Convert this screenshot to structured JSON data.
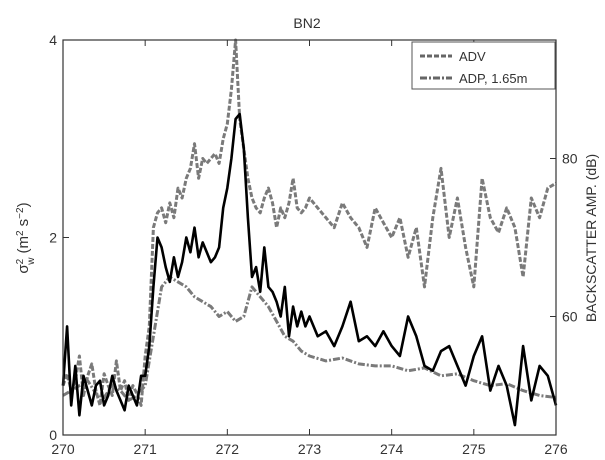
{
  "chart_data": {
    "type": "line",
    "title": "BN2",
    "xlabel": "",
    "ylabel_left_main": "σ",
    "ylabel_left_sub": "w",
    "ylabel_left_sup": "2",
    "ylabel_left_units_a": "(m",
    "ylabel_left_units_sup1": "2",
    "ylabel_left_units_b": " s",
    "ylabel_left_units_sup2": "−2",
    "ylabel_left_units_c": ")",
    "ylabel_right": "BACKSCATTER AMP. (dB)",
    "xlim": [
      270,
      276
    ],
    "ylim_left": [
      0,
      4
    ],
    "ylim_right": [
      45,
      95
    ],
    "x_ticks": [
      "270",
      "271",
      "272",
      "273",
      "274",
      "275",
      "276"
    ],
    "y_ticks_left": [
      "0",
      "2",
      "4"
    ],
    "y_ticks_right": [
      "60",
      "80"
    ],
    "legend_position": "top-right",
    "series": [
      {
        "name": "ADV",
        "axis": "left",
        "style": "dashed",
        "color": "#7a7a7a",
        "x": [
          270.0,
          270.05,
          270.1,
          270.15,
          270.2,
          270.25,
          270.3,
          270.35,
          270.4,
          270.45,
          270.5,
          270.55,
          270.6,
          270.65,
          270.7,
          270.75,
          270.8,
          270.85,
          270.9,
          270.95,
          271.0,
          271.05,
          271.1,
          271.15,
          271.2,
          271.25,
          271.3,
          271.35,
          271.4,
          271.45,
          271.5,
          271.55,
          271.6,
          271.65,
          271.7,
          271.75,
          271.8,
          271.85,
          271.9,
          271.95,
          272.0,
          272.05,
          272.1,
          272.15,
          272.2,
          272.25,
          272.3,
          272.35,
          272.4,
          272.45,
          272.5,
          272.55,
          272.6,
          272.65,
          272.7,
          272.75,
          272.8,
          272.85,
          272.9,
          272.95,
          273.0,
          273.1,
          273.2,
          273.3,
          273.4,
          273.5,
          273.6,
          273.7,
          273.8,
          273.9,
          274.0,
          274.1,
          274.2,
          274.3,
          274.4,
          274.5,
          274.6,
          274.7,
          274.8,
          274.9,
          275.0,
          275.1,
          275.2,
          275.3,
          275.4,
          275.5,
          275.6,
          275.7,
          275.8,
          275.9,
          276.0
        ],
        "y": [
          0.5,
          0.62,
          0.45,
          0.55,
          0.8,
          0.4,
          0.6,
          0.72,
          0.45,
          0.3,
          0.62,
          0.5,
          0.4,
          0.75,
          0.45,
          0.55,
          0.35,
          0.5,
          0.42,
          0.3,
          0.8,
          1.1,
          2.1,
          2.25,
          2.3,
          2.15,
          2.35,
          2.2,
          2.5,
          2.4,
          2.6,
          2.7,
          2.95,
          2.6,
          2.8,
          2.75,
          2.8,
          2.85,
          2.75,
          3.0,
          3.15,
          3.5,
          4.0,
          3.2,
          2.9,
          2.6,
          2.4,
          2.3,
          2.25,
          2.4,
          2.5,
          2.35,
          2.1,
          2.3,
          2.2,
          2.35,
          2.6,
          2.3,
          2.25,
          2.3,
          2.4,
          2.3,
          2.2,
          2.1,
          2.35,
          2.2,
          2.1,
          1.9,
          2.3,
          2.15,
          2.0,
          2.2,
          1.8,
          2.1,
          1.5,
          2.2,
          2.7,
          2.0,
          2.4,
          1.9,
          1.5,
          2.6,
          2.2,
          2.05,
          2.3,
          2.1,
          1.6,
          2.4,
          2.2,
          2.5,
          2.55
        ]
      },
      {
        "name": "ADP, 1.65m",
        "axis": "left",
        "style": "dash-dot",
        "color": "#7a7a7a",
        "x": [
          270.0,
          270.1,
          270.2,
          270.3,
          270.4,
          270.5,
          270.6,
          270.7,
          270.8,
          270.9,
          271.0,
          271.1,
          271.2,
          271.3,
          271.4,
          271.5,
          271.6,
          271.7,
          271.8,
          271.9,
          272.0,
          272.1,
          272.2,
          272.3,
          272.4,
          272.5,
          272.6,
          272.7,
          272.8,
          272.9,
          273.0,
          273.2,
          273.4,
          273.6,
          273.8,
          274.0,
          274.2,
          274.4,
          274.6,
          274.8,
          275.0,
          275.2,
          275.4,
          275.6,
          275.8,
          276.0
        ],
        "y": [
          0.4,
          0.45,
          0.5,
          0.55,
          0.42,
          0.38,
          0.5,
          0.45,
          0.35,
          0.4,
          0.5,
          1.0,
          1.5,
          1.6,
          1.55,
          1.5,
          1.4,
          1.35,
          1.3,
          1.2,
          1.25,
          1.15,
          1.2,
          1.5,
          1.4,
          1.3,
          1.15,
          1.0,
          0.95,
          0.85,
          0.8,
          0.75,
          0.78,
          0.72,
          0.7,
          0.7,
          0.65,
          0.68,
          0.6,
          0.62,
          0.55,
          0.5,
          0.52,
          0.45,
          0.4,
          0.38
        ]
      },
      {
        "name": "",
        "axis": "left",
        "style": "solid",
        "color": "#000000",
        "x": [
          270.0,
          270.05,
          270.1,
          270.15,
          270.2,
          270.25,
          270.3,
          270.35,
          270.4,
          270.45,
          270.5,
          270.55,
          270.6,
          270.65,
          270.7,
          270.75,
          270.8,
          270.85,
          270.9,
          270.95,
          271.0,
          271.05,
          271.1,
          271.15,
          271.2,
          271.25,
          271.3,
          271.35,
          271.4,
          271.45,
          271.5,
          271.55,
          271.6,
          271.65,
          271.7,
          271.75,
          271.8,
          271.85,
          271.9,
          271.95,
          272.0,
          272.05,
          272.1,
          272.15,
          272.2,
          272.25,
          272.3,
          272.35,
          272.4,
          272.45,
          272.5,
          272.55,
          272.6,
          272.65,
          272.7,
          272.75,
          272.8,
          272.85,
          272.9,
          272.95,
          273.0,
          273.1,
          273.2,
          273.3,
          273.4,
          273.5,
          273.6,
          273.7,
          273.8,
          273.9,
          274.0,
          274.1,
          274.2,
          274.3,
          274.4,
          274.5,
          274.6,
          274.7,
          274.8,
          274.9,
          275.0,
          275.1,
          275.2,
          275.3,
          275.4,
          275.5,
          275.6,
          275.7,
          275.8,
          275.9,
          276.0
        ],
        "y": [
          0.5,
          1.1,
          0.3,
          0.7,
          0.2,
          0.6,
          0.45,
          0.3,
          0.5,
          0.55,
          0.3,
          0.4,
          0.6,
          0.45,
          0.35,
          0.25,
          0.5,
          0.4,
          0.3,
          0.6,
          0.6,
          0.9,
          1.5,
          2.0,
          1.9,
          1.7,
          1.55,
          1.8,
          1.6,
          1.75,
          2.0,
          1.85,
          2.1,
          1.8,
          1.95,
          1.85,
          1.75,
          1.8,
          1.9,
          2.3,
          2.5,
          2.8,
          3.2,
          3.25,
          2.9,
          2.2,
          1.6,
          1.7,
          1.45,
          1.9,
          1.5,
          1.45,
          1.35,
          1.2,
          1.5,
          1.0,
          1.3,
          1.1,
          1.25,
          1.1,
          1.2,
          1.0,
          1.05,
          0.9,
          1.1,
          1.35,
          0.95,
          1.0,
          0.9,
          1.05,
          0.9,
          0.8,
          1.2,
          1.0,
          0.7,
          0.65,
          0.85,
          0.9,
          0.7,
          0.5,
          0.8,
          1.0,
          0.45,
          0.7,
          0.5,
          0.1,
          0.9,
          0.35,
          0.7,
          0.6,
          0.3
        ]
      }
    ]
  }
}
